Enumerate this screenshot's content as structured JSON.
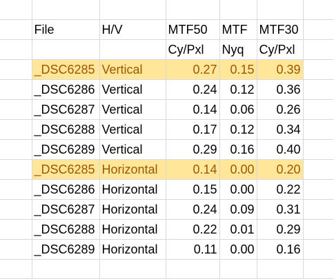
{
  "sheet": {
    "header": {
      "row1": [
        "File",
        "H/V",
        "MTF50",
        "MTF",
        "MTF30"
      ],
      "row2": [
        "",
        "",
        "Cy/Pxl",
        "Nyq",
        "Cy/Pxl"
      ]
    },
    "rows": [
      {
        "file": "_DSC6285",
        "hv": "Vertical",
        "mtf50": "0.27",
        "mtf": "0.15",
        "mtf30": "0.39",
        "highlight": true
      },
      {
        "file": "_DSC6286",
        "hv": "Vertical",
        "mtf50": "0.24",
        "mtf": "0.12",
        "mtf30": "0.36",
        "highlight": false
      },
      {
        "file": "_DSC6287",
        "hv": "Vertical",
        "mtf50": "0.14",
        "mtf": "0.06",
        "mtf30": "0.26",
        "highlight": false
      },
      {
        "file": "_DSC6288",
        "hv": "Vertical",
        "mtf50": "0.17",
        "mtf": "0.12",
        "mtf30": "0.34",
        "highlight": false
      },
      {
        "file": "_DSC6289",
        "hv": "Vertical",
        "mtf50": "0.29",
        "mtf": "0.16",
        "mtf30": "0.40",
        "highlight": false
      },
      {
        "file": "_DSC6285",
        "hv": "Horizontal",
        "mtf50": "0.14",
        "mtf": "0.00",
        "mtf30": "0.20",
        "highlight": true
      },
      {
        "file": "_DSC6286",
        "hv": "Horizontal",
        "mtf50": "0.15",
        "mtf": "0.00",
        "mtf30": "0.22",
        "highlight": false
      },
      {
        "file": "_DSC6287",
        "hv": "Horizontal",
        "mtf50": "0.24",
        "mtf": "0.09",
        "mtf30": "0.31",
        "highlight": false
      },
      {
        "file": "_DSC6288",
        "hv": "Horizontal",
        "mtf50": "0.22",
        "mtf": "0.01",
        "mtf30": "0.29",
        "highlight": false
      },
      {
        "file": "_DSC6289",
        "hv": "Horizontal",
        "mtf50": "0.11",
        "mtf": "0.00",
        "mtf30": "0.16",
        "highlight": false
      }
    ],
    "colors": {
      "highlight_fill": "#ffe699",
      "highlight_text": "#9c5700",
      "gridline": "#d9d9d9"
    }
  }
}
